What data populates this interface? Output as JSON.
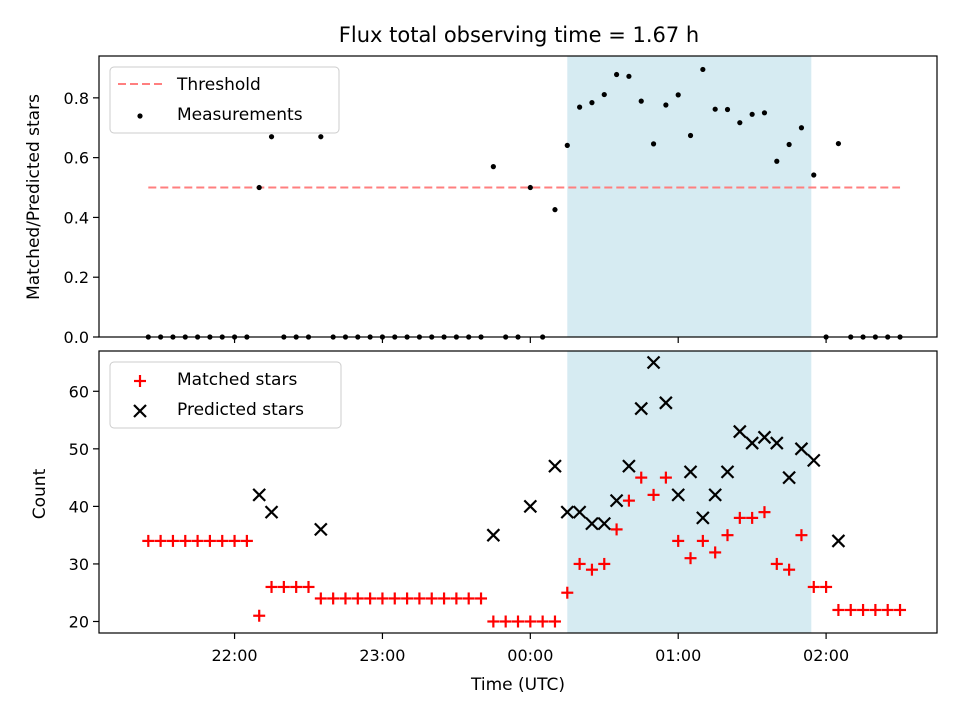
{
  "chart_data": [
    {
      "type": "scatter",
      "title": "Flux total observing time = 1.67 h",
      "xlabel": "",
      "ylabel": "Matched/Predicted stars",
      "ylim": [
        0,
        0.94
      ],
      "yticks": [
        "0.0",
        "0.2",
        "0.4",
        "0.6",
        "0.8"
      ],
      "legend_location": "top-left",
      "threshold": {
        "label": "Threshold",
        "value": 0.5,
        "x_range": [
          "21:25",
          "02:30"
        ],
        "color": "#ff7f7f"
      },
      "highlight": {
        "x_start": "00:15",
        "x_end": "01:54",
        "color": "#add8e6"
      },
      "series": [
        {
          "name": "Measurements",
          "marker": "dot",
          "color": "#000000",
          "points": [
            [
              "21:25",
              0
            ],
            [
              "21:30",
              0
            ],
            [
              "21:35",
              0
            ],
            [
              "21:40",
              0
            ],
            [
              "21:45",
              0
            ],
            [
              "21:50",
              0
            ],
            [
              "21:55",
              0
            ],
            [
              "22:00",
              0
            ],
            [
              "22:05",
              0
            ],
            [
              "22:10",
              0.5
            ],
            [
              "22:15",
              0.67
            ],
            [
              "22:20",
              0
            ],
            [
              "22:25",
              0
            ],
            [
              "22:30",
              0
            ],
            [
              "22:35",
              0.67
            ],
            [
              "22:40",
              0
            ],
            [
              "22:45",
              0
            ],
            [
              "22:50",
              0
            ],
            [
              "22:55",
              0
            ],
            [
              "23:00",
              0
            ],
            [
              "23:05",
              0
            ],
            [
              "23:10",
              0
            ],
            [
              "23:15",
              0
            ],
            [
              "23:20",
              0
            ],
            [
              "23:25",
              0
            ],
            [
              "23:30",
              0
            ],
            [
              "23:35",
              0
            ],
            [
              "23:40",
              0
            ],
            [
              "23:45",
              0.57
            ],
            [
              "23:50",
              0
            ],
            [
              "23:55",
              0
            ],
            [
              "00:00",
              0.5
            ],
            [
              "00:05",
              0
            ],
            [
              "00:10",
              0.426
            ],
            [
              "00:15",
              0.641
            ],
            [
              "00:20",
              0.769
            ],
            [
              "00:25",
              0.784
            ],
            [
              "00:30",
              0.811
            ],
            [
              "00:35",
              0.878
            ],
            [
              "00:40",
              0.872
            ],
            [
              "00:45",
              0.789
            ],
            [
              "00:50",
              0.646
            ],
            [
              "00:55",
              0.776
            ],
            [
              "01:00",
              0.81
            ],
            [
              "01:05",
              0.674
            ],
            [
              "01:10",
              0.895
            ],
            [
              "01:15",
              0.762
            ],
            [
              "01:20",
              0.761
            ],
            [
              "01:25",
              0.717
            ],
            [
              "01:30",
              0.745
            ],
            [
              "01:35",
              0.75
            ],
            [
              "01:40",
              0.588
            ],
            [
              "01:45",
              0.644
            ],
            [
              "01:50",
              0.7
            ],
            [
              "01:55",
              0.542
            ],
            [
              "02:00",
              0
            ],
            [
              "02:05",
              0.647
            ],
            [
              "02:10",
              0
            ],
            [
              "02:15",
              0
            ],
            [
              "02:20",
              0
            ],
            [
              "02:25",
              0
            ],
            [
              "02:30",
              0
            ]
          ]
        }
      ]
    },
    {
      "type": "scatter",
      "title": "",
      "xlabel": "Time (UTC)",
      "ylabel": "Count",
      "ylim": [
        18,
        67
      ],
      "xlim": [
        "21:05",
        "02:45"
      ],
      "yticks": [
        "20",
        "30",
        "40",
        "50",
        "60"
      ],
      "xticks": [
        "22:00",
        "23:00",
        "00:00",
        "01:00",
        "02:00"
      ],
      "legend_location": "top-left",
      "highlight": {
        "x_start": "00:15",
        "x_end": "01:54",
        "color": "#add8e6"
      },
      "series": [
        {
          "name": "Matched stars",
          "marker": "plus",
          "color": "#ff0000",
          "points": [
            [
              "21:25",
              34
            ],
            [
              "21:30",
              34
            ],
            [
              "21:35",
              34
            ],
            [
              "21:40",
              34
            ],
            [
              "21:45",
              34
            ],
            [
              "21:50",
              34
            ],
            [
              "21:55",
              34
            ],
            [
              "22:00",
              34
            ],
            [
              "22:05",
              34
            ],
            [
              "22:10",
              21
            ],
            [
              "22:15",
              26
            ],
            [
              "22:20",
              26
            ],
            [
              "22:25",
              26
            ],
            [
              "22:30",
              26
            ],
            [
              "22:35",
              24
            ],
            [
              "22:40",
              24
            ],
            [
              "22:45",
              24
            ],
            [
              "22:50",
              24
            ],
            [
              "22:55",
              24
            ],
            [
              "23:00",
              24
            ],
            [
              "23:05",
              24
            ],
            [
              "23:10",
              24
            ],
            [
              "23:15",
              24
            ],
            [
              "23:20",
              24
            ],
            [
              "23:25",
              24
            ],
            [
              "23:30",
              24
            ],
            [
              "23:35",
              24
            ],
            [
              "23:40",
              24
            ],
            [
              "23:45",
              20
            ],
            [
              "23:50",
              20
            ],
            [
              "23:55",
              20
            ],
            [
              "00:00",
              20
            ],
            [
              "00:05",
              20
            ],
            [
              "00:10",
              20
            ],
            [
              "00:15",
              25
            ],
            [
              "00:20",
              30
            ],
            [
              "00:25",
              29
            ],
            [
              "00:30",
              30
            ],
            [
              "00:35",
              36
            ],
            [
              "00:40",
              41
            ],
            [
              "00:45",
              45
            ],
            [
              "00:50",
              42
            ],
            [
              "00:55",
              45
            ],
            [
              "01:00",
              34
            ],
            [
              "01:05",
              31
            ],
            [
              "01:10",
              34
            ],
            [
              "01:15",
              32
            ],
            [
              "01:20",
              35
            ],
            [
              "01:25",
              38
            ],
            [
              "01:30",
              38
            ],
            [
              "01:35",
              39
            ],
            [
              "01:40",
              30
            ],
            [
              "01:45",
              29
            ],
            [
              "01:50",
              35
            ],
            [
              "01:55",
              26
            ],
            [
              "02:00",
              26
            ],
            [
              "02:05",
              22
            ],
            [
              "02:10",
              22
            ],
            [
              "02:15",
              22
            ],
            [
              "02:20",
              22
            ],
            [
              "02:25",
              22
            ],
            [
              "02:30",
              22
            ]
          ]
        },
        {
          "name": "Predicted stars",
          "marker": "x",
          "color": "#000000",
          "points": [
            [
              "22:10",
              42
            ],
            [
              "22:15",
              39
            ],
            [
              "22:35",
              36
            ],
            [
              "23:45",
              35
            ],
            [
              "00:00",
              40
            ],
            [
              "00:10",
              47
            ],
            [
              "00:15",
              39
            ],
            [
              "00:20",
              39
            ],
            [
              "00:25",
              37
            ],
            [
              "00:30",
              37
            ],
            [
              "00:35",
              41
            ],
            [
              "00:40",
              47
            ],
            [
              "00:45",
              57
            ],
            [
              "00:50",
              65
            ],
            [
              "00:55",
              58
            ],
            [
              "01:00",
              42
            ],
            [
              "01:05",
              46
            ],
            [
              "01:10",
              38
            ],
            [
              "01:15",
              42
            ],
            [
              "01:20",
              46
            ],
            [
              "01:25",
              53
            ],
            [
              "01:30",
              51
            ],
            [
              "01:35",
              52
            ],
            [
              "01:40",
              51
            ],
            [
              "01:45",
              45
            ],
            [
              "01:50",
              50
            ],
            [
              "01:55",
              48
            ],
            [
              "02:05",
              34
            ]
          ]
        }
      ]
    }
  ]
}
